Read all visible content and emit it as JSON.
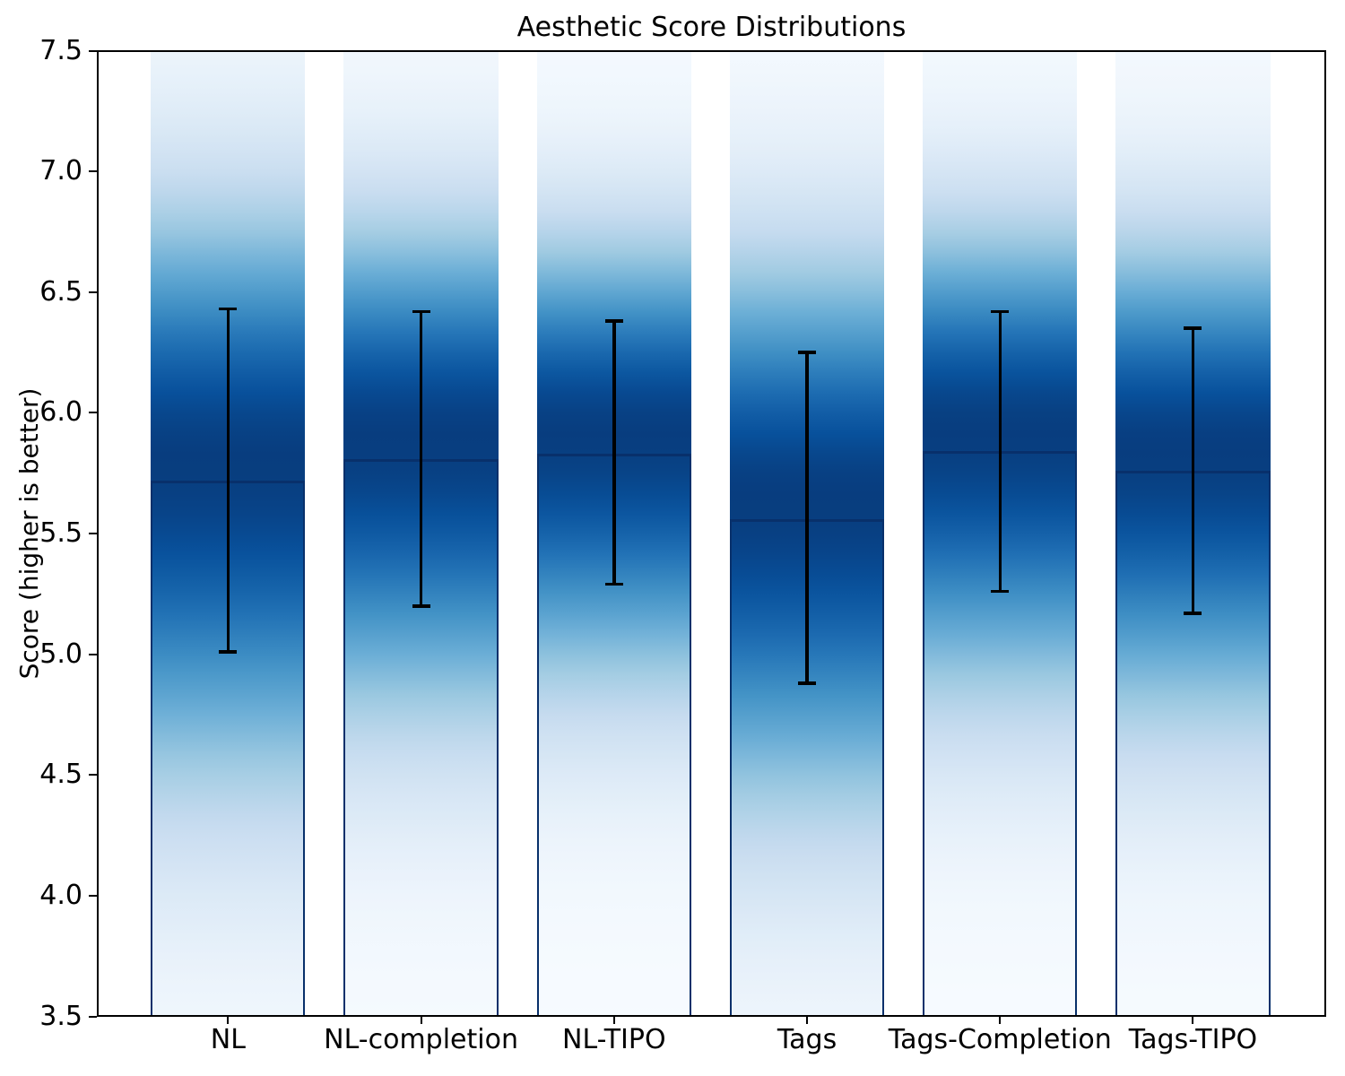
{
  "title": "Aesthetic Score Distributions",
  "chart_data": {
    "type": "bar",
    "title": "Aesthetic Score Distributions",
    "xlabel": "",
    "ylabel": "Score (higher is better)",
    "ylim": [
      3.5,
      7.5
    ],
    "yticks": [
      7.5,
      7.0,
      6.5,
      6.0,
      5.5,
      5.0,
      4.5,
      4.0,
      3.5
    ],
    "grid": false,
    "legend": null,
    "categories": [
      "NL",
      "NL-completion",
      "NL-TIPO",
      "Tags",
      "Tags-Completion",
      "Tags-TIPO"
    ],
    "bars": [
      {
        "label": "NL",
        "mean": 5.72,
        "std": 0.71,
        "err_low": 5.01,
        "err_high": 6.43
      },
      {
        "label": "NL-completion",
        "mean": 5.81,
        "std": 0.61,
        "err_low": 5.2,
        "err_high": 6.42
      },
      {
        "label": "NL-TIPO",
        "mean": 5.83,
        "std": 0.55,
        "err_low": 5.29,
        "err_high": 6.38
      },
      {
        "label": "Tags",
        "mean": 5.56,
        "std": 0.68,
        "err_low": 4.88,
        "err_high": 6.25
      },
      {
        "label": "Tags-Completion",
        "mean": 5.84,
        "std": 0.58,
        "err_low": 5.26,
        "err_high": 6.42
      },
      {
        "label": "Tags-TIPO",
        "mean": 5.76,
        "std": 0.59,
        "err_low": 5.17,
        "err_high": 6.35
      }
    ],
    "style": {
      "bar_fill": "vertical gaussian-density gradient, darkest at mean",
      "colormap": "Blues",
      "colormap_anchors": [
        {
          "t": 0.0,
          "color": "#f7fbff"
        },
        {
          "t": 0.125,
          "color": "#deebf7"
        },
        {
          "t": 0.25,
          "color": "#c6dbef"
        },
        {
          "t": 0.375,
          "color": "#9ecae1"
        },
        {
          "t": 0.5,
          "color": "#6baed6"
        },
        {
          "t": 0.625,
          "color": "#4292c6"
        },
        {
          "t": 0.75,
          "color": "#2171b5"
        },
        {
          "t": 0.875,
          "color": "#08519c"
        },
        {
          "t": 1.0,
          "color": "#08306b"
        }
      ],
      "edge_color": "#08306b",
      "errorbar_color": "#000000",
      "spine_color": "#000000",
      "text_color": "#000000",
      "background": "#ffffff"
    }
  }
}
